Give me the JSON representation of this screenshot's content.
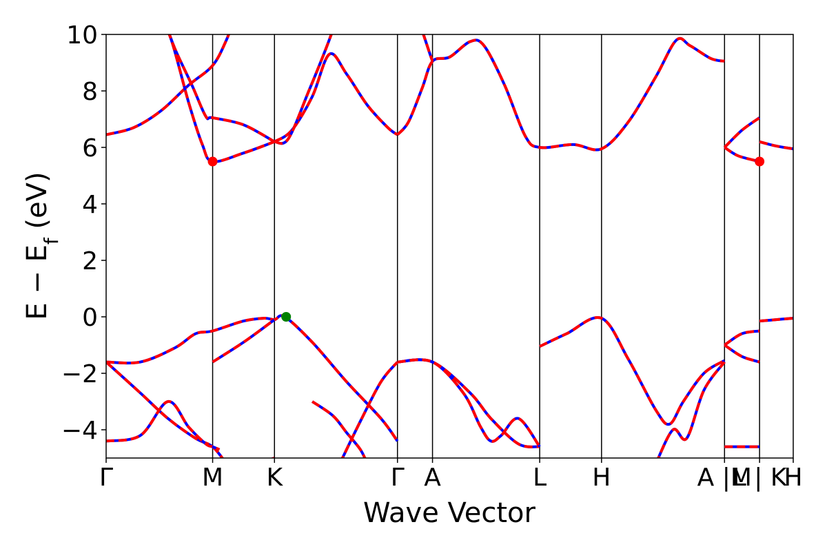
{
  "chart_data": {
    "type": "line",
    "title": "",
    "xlabel": "Wave Vector",
    "ylabel": "E − E",
    "ylabel_sub": "f",
    "ylabel_unit": " (eV)",
    "xlim": [
      0,
      1
    ],
    "ylim": [
      -5,
      10
    ],
    "yticks": [
      -4,
      -2,
      0,
      2,
      4,
      6,
      8,
      10
    ],
    "grid": false,
    "legend": "none",
    "kpoints": [
      {
        "label": "Γ",
        "x": 0.0
      },
      {
        "label": "M",
        "x": 0.155
      },
      {
        "label": "K",
        "x": 0.245
      },
      {
        "label": "Γ",
        "x": 0.424
      },
      {
        "label": "A",
        "x": 0.475
      },
      {
        "label": "L",
        "x": 0.631
      },
      {
        "label": "H",
        "x": 0.721
      },
      {
        "label": "A |M",
        "x": 0.9
      },
      {
        "label": "L | K",
        "x": 0.951
      },
      {
        "label": "H",
        "x": 1.0
      }
    ],
    "series_style": {
      "base_color": "#0000ff",
      "overlay_color": "#ff0000",
      "overlay_dash": "dashed"
    },
    "bands": [
      {
        "segments": [
          [
            [
              0.0,
              6.45
            ],
            [
              0.04,
              6.7
            ],
            [
              0.08,
              7.3
            ],
            [
              0.12,
              8.2
            ],
            [
              0.155,
              8.9
            ],
            [
              0.175,
              9.8
            ],
            [
              0.185,
              10.5
            ]
          ],
          [
            [
              0.085,
              10.5
            ],
            [
              0.1,
              9.5
            ],
            [
              0.125,
              8.2
            ],
            [
              0.145,
              7.1
            ],
            [
              0.155,
              7.05
            ],
            [
              0.2,
              6.8
            ],
            [
              0.245,
              6.2
            ]
          ],
          [
            [
              0.245,
              6.2
            ],
            [
              0.27,
              6.6
            ],
            [
              0.3,
              7.8
            ],
            [
              0.325,
              9.3
            ],
            [
              0.35,
              8.6
            ],
            [
              0.38,
              7.5
            ],
            [
              0.41,
              6.7
            ],
            [
              0.424,
              6.45
            ]
          ]
        ]
      },
      {
        "segments": [
          [
            [
              0.08,
              10.5
            ],
            [
              0.095,
              9.8
            ],
            [
              0.12,
              7.6
            ],
            [
              0.14,
              6.1
            ],
            [
              0.155,
              5.5
            ],
            [
              0.2,
              5.8
            ],
            [
              0.245,
              6.2
            ]
          ],
          [
            [
              0.245,
              6.2
            ],
            [
              0.265,
              6.3
            ],
            [
              0.295,
              8.0
            ],
            [
              0.32,
              9.5
            ],
            [
              0.335,
              10.5
            ]
          ],
          [
            [
              0.424,
              6.45
            ],
            [
              0.44,
              6.9
            ],
            [
              0.46,
              8.1
            ],
            [
              0.475,
              9.05
            ],
            [
              0.5,
              9.2
            ],
            [
              0.53,
              9.75
            ],
            [
              0.55,
              9.6
            ],
            [
              0.58,
              8.2
            ],
            [
              0.61,
              6.4
            ],
            [
              0.631,
              6.0
            ],
            [
              0.68,
              6.1
            ],
            [
              0.721,
              5.95
            ],
            [
              0.76,
              6.9
            ],
            [
              0.8,
              8.5
            ],
            [
              0.83,
              9.8
            ],
            [
              0.85,
              9.6
            ],
            [
              0.88,
              9.15
            ],
            [
              0.9,
              9.05
            ]
          ],
          [
            [
              0.455,
              10.5
            ],
            [
              0.47,
              9.4
            ],
            [
              0.475,
              9.05
            ]
          ],
          [
            [
              0.9,
              6.0
            ],
            [
              0.92,
              5.7
            ],
            [
              0.951,
              5.5
            ]
          ],
          [
            [
              0.9,
              6.0
            ],
            [
              0.925,
              6.6
            ],
            [
              0.951,
              7.05
            ]
          ],
          [
            [
              0.951,
              6.2
            ],
            [
              0.975,
              6.05
            ],
            [
              1.0,
              5.95
            ]
          ]
        ]
      },
      {
        "segments": [
          [
            [
              0.0,
              -1.6
            ],
            [
              0.05,
              -1.6
            ],
            [
              0.1,
              -1.1
            ],
            [
              0.13,
              -0.6
            ],
            [
              0.155,
              -0.5
            ],
            [
              0.2,
              -0.15
            ],
            [
              0.23,
              -0.05
            ],
            [
              0.245,
              -0.1
            ],
            [
              0.26,
              0.0
            ],
            [
              0.3,
              -0.9
            ],
            [
              0.35,
              -2.3
            ],
            [
              0.4,
              -3.6
            ],
            [
              0.424,
              -4.4
            ]
          ],
          [
            [
              0.155,
              -1.6
            ],
            [
              0.2,
              -0.9
            ],
            [
              0.245,
              -0.1
            ]
          ],
          [
            [
              0.424,
              -1.6
            ],
            [
              0.475,
              -1.6
            ],
            [
              0.53,
              -2.7
            ],
            [
              0.56,
              -3.6
            ],
            [
              0.6,
              -4.5
            ],
            [
              0.631,
              -4.6
            ]
          ],
          [
            [
              0.631,
              -1.05
            ],
            [
              0.67,
              -0.6
            ],
            [
              0.721,
              -0.05
            ],
            [
              0.76,
              -1.5
            ],
            [
              0.8,
              -3.3
            ],
            [
              0.82,
              -3.8
            ],
            [
              0.84,
              -3.0
            ],
            [
              0.87,
              -2.0
            ],
            [
              0.9,
              -1.55
            ]
          ],
          [
            [
              0.9,
              -1.0
            ],
            [
              0.925,
              -0.6
            ],
            [
              0.951,
              -0.5
            ]
          ],
          [
            [
              0.9,
              -1.0
            ],
            [
              0.925,
              -1.4
            ],
            [
              0.951,
              -1.6
            ]
          ],
          [
            [
              0.951,
              -0.15
            ],
            [
              0.975,
              -0.1
            ],
            [
              1.0,
              -0.05
            ]
          ]
        ]
      },
      {
        "segments": [
          [
            [
              0.0,
              -1.6
            ],
            [
              0.05,
              -2.7
            ],
            [
              0.09,
              -3.6
            ],
            [
              0.13,
              -4.3
            ],
            [
              0.155,
              -4.6
            ],
            [
              0.175,
              -5.2
            ]
          ],
          [
            [
              0.0,
              -4.4
            ],
            [
              0.05,
              -4.2
            ],
            [
              0.09,
              -3.0
            ],
            [
              0.12,
              -3.9
            ],
            [
              0.145,
              -4.5
            ],
            [
              0.155,
              -4.6
            ],
            [
              0.165,
              -4.7
            ]
          ],
          [
            [
              0.22,
              -5.2
            ],
            [
              0.245,
              -5.0
            ]
          ],
          [
            [
              0.3,
              -3.0
            ],
            [
              0.33,
              -3.5
            ],
            [
              0.35,
              -4.1
            ],
            [
              0.37,
              -4.7
            ],
            [
              0.38,
              -5.2
            ]
          ],
          [
            [
              0.34,
              -5.2
            ],
            [
              0.37,
              -3.7
            ],
            [
              0.4,
              -2.3
            ],
            [
              0.424,
              -1.6
            ]
          ],
          [
            [
              0.424,
              -1.6
            ],
            [
              0.475,
              -1.6
            ],
            [
              0.52,
              -2.7
            ],
            [
              0.545,
              -3.9
            ],
            [
              0.56,
              -4.4
            ],
            [
              0.575,
              -4.2
            ],
            [
              0.6,
              -3.6
            ],
            [
              0.631,
              -4.6
            ]
          ],
          [
            [
              0.8,
              -5.2
            ],
            [
              0.825,
              -4.0
            ],
            [
              0.845,
              -4.3
            ],
            [
              0.87,
              -2.6
            ],
            [
              0.9,
              -1.6
            ]
          ],
          [
            [
              0.9,
              -4.6
            ],
            [
              0.951,
              -4.6
            ]
          ]
        ]
      }
    ],
    "markers": [
      {
        "x": 0.155,
        "y": 5.5,
        "color": "#ff0000"
      },
      {
        "x": 0.951,
        "y": 5.5,
        "color": "#ff0000"
      },
      {
        "x": 0.262,
        "y": 0.0,
        "color": "#008000"
      }
    ]
  }
}
